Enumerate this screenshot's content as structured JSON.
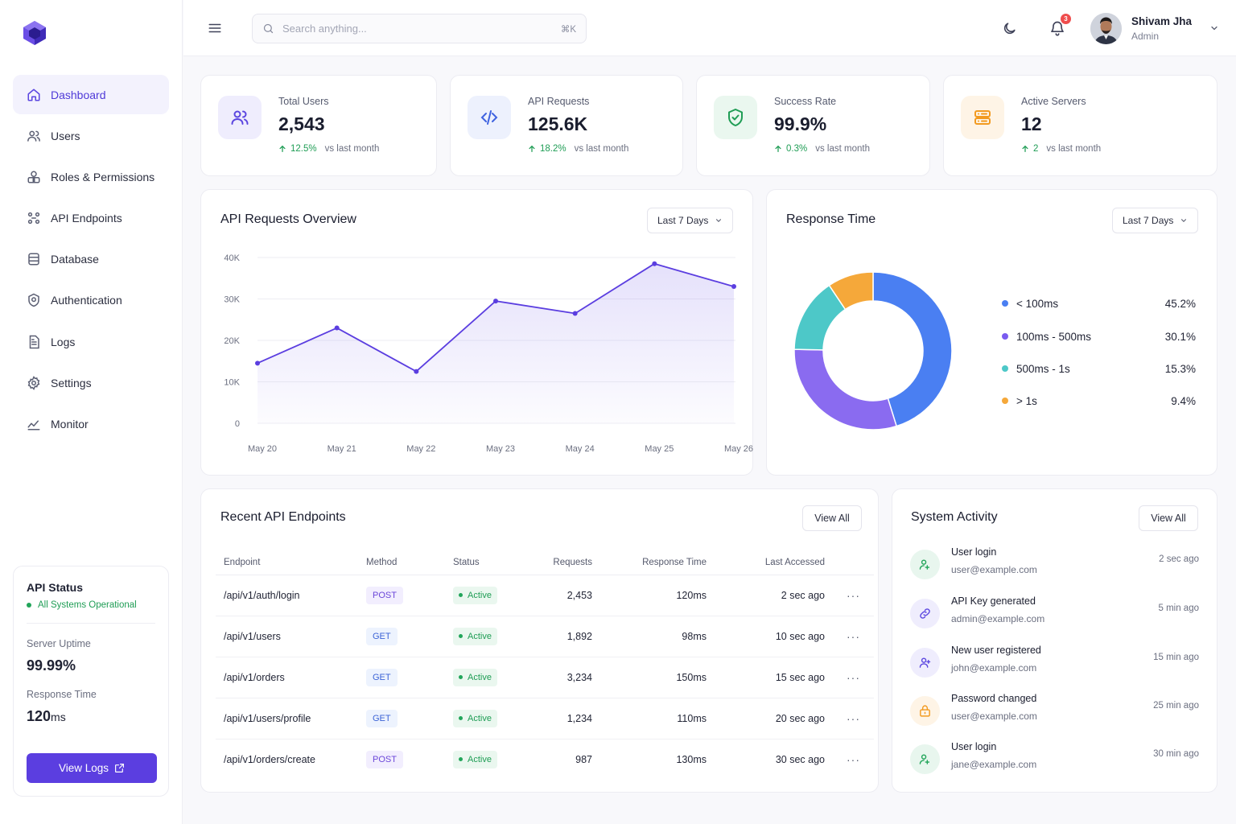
{
  "colors": {
    "accent": "#5b3ee0",
    "success": "#22a55a",
    "blue": "#4a7ff2",
    "purple": "#8a6bf0",
    "teal": "#4dc8c8",
    "orange": "#f5a83a"
  },
  "search": {
    "placeholder": "Search anything...",
    "shortcut": "⌘K"
  },
  "notifications": {
    "count": "3"
  },
  "user": {
    "name": "Shivam Jha",
    "role": "Admin"
  },
  "sidebar": {
    "items": [
      {
        "label": "Dashboard",
        "icon": "home-icon"
      },
      {
        "label": "Users",
        "icon": "users-icon"
      },
      {
        "label": "Roles & Permissions",
        "icon": "lock-icon"
      },
      {
        "label": "API Endpoints",
        "icon": "endpoints-icon"
      },
      {
        "label": "Database",
        "icon": "database-icon"
      },
      {
        "label": "Authentication",
        "icon": "target-icon"
      },
      {
        "label": "Logs",
        "icon": "document-icon"
      },
      {
        "label": "Settings",
        "icon": "gear-icon"
      },
      {
        "label": "Monitor",
        "icon": "chart-line-icon"
      }
    ],
    "status": {
      "title": "API Status",
      "state": "All Systems Operational",
      "uptime_label": "Server Uptime",
      "uptime_value": "99.99%",
      "response_label": "Response Time",
      "response_value": "120",
      "response_unit": "ms",
      "button": "View Logs"
    }
  },
  "stats": [
    {
      "label": "Total Users",
      "value": "2,543",
      "trend": "12.5%",
      "vs": "vs last month",
      "icon": "users-icon"
    },
    {
      "label": "API Requests",
      "value": "125.6K",
      "trend": "18.2%",
      "vs": "vs last month",
      "icon": "code-icon"
    },
    {
      "label": "Success Rate",
      "value": "99.9%",
      "trend": "0.3%",
      "vs": "vs last month",
      "icon": "shield-check-icon"
    },
    {
      "label": "Active Servers",
      "value": "12",
      "trend": "2",
      "vs": "vs last month",
      "icon": "server-icon"
    }
  ],
  "requests_chart": {
    "title": "API Requests Overview",
    "range": "Last 7 Days"
  },
  "response_chart": {
    "title": "Response Time",
    "range": "Last 7 Days"
  },
  "chart_data": [
    {
      "type": "area",
      "title": "API Requests Overview",
      "categories": [
        "May 20",
        "May 21",
        "May 22",
        "May 23",
        "May 24",
        "May 25",
        "May 26"
      ],
      "values": [
        14500,
        23000,
        12500,
        29500,
        26500,
        38500,
        33000
      ],
      "y_ticks": [
        "0",
        "10K",
        "20K",
        "30K",
        "40K"
      ],
      "ylim": [
        0,
        40000
      ],
      "grid": true
    },
    {
      "type": "pie",
      "title": "Response Time",
      "labels": [
        "< 100ms",
        "100ms - 500ms",
        "500ms - 1s",
        "> 1s"
      ],
      "values": [
        45.2,
        30.1,
        15.3,
        9.4
      ],
      "display": [
        "45.2%",
        "30.1%",
        "15.3%",
        "9.4%"
      ],
      "colors": [
        "#4a7ff2",
        "#8a6bf0",
        "#4dc8c8",
        "#f5a83a"
      ],
      "legend": "right"
    }
  ],
  "endpoints": {
    "title": "Recent API Endpoints",
    "view_all": "View All",
    "columns": [
      "Endpoint",
      "Method",
      "Status",
      "Requests",
      "Response Time",
      "Last Accessed"
    ],
    "rows": [
      {
        "endpoint": "/api/v1/auth/login",
        "method": "POST",
        "status": "Active",
        "requests": "2,453",
        "response": "120ms",
        "last": "2 sec ago"
      },
      {
        "endpoint": "/api/v1/users",
        "method": "GET",
        "status": "Active",
        "requests": "1,892",
        "response": "98ms",
        "last": "10 sec ago"
      },
      {
        "endpoint": "/api/v1/orders",
        "method": "GET",
        "status": "Active",
        "requests": "3,234",
        "response": "150ms",
        "last": "15 sec ago"
      },
      {
        "endpoint": "/api/v1/users/profile",
        "method": "GET",
        "status": "Active",
        "requests": "1,234",
        "response": "110ms",
        "last": "20 sec ago"
      },
      {
        "endpoint": "/api/v1/orders/create",
        "method": "POST",
        "status": "Active",
        "requests": "987",
        "response": "130ms",
        "last": "30 sec ago"
      }
    ]
  },
  "activity": {
    "title": "System Activity",
    "view_all": "View All",
    "items": [
      {
        "title": "User login",
        "sub": "user@example.com",
        "time": "2 sec ago",
        "icon": "login-icon"
      },
      {
        "title": "API Key generated",
        "sub": "admin@example.com",
        "time": "5 min ago",
        "icon": "link-icon"
      },
      {
        "title": "New user registered",
        "sub": "john@example.com",
        "time": "15 min ago",
        "icon": "user-add-icon"
      },
      {
        "title": "Password changed",
        "sub": "user@example.com",
        "time": "25 min ago",
        "icon": "lock-icon"
      },
      {
        "title": "User login",
        "sub": "jane@example.com",
        "time": "30 min ago",
        "icon": "login-icon"
      }
    ]
  }
}
